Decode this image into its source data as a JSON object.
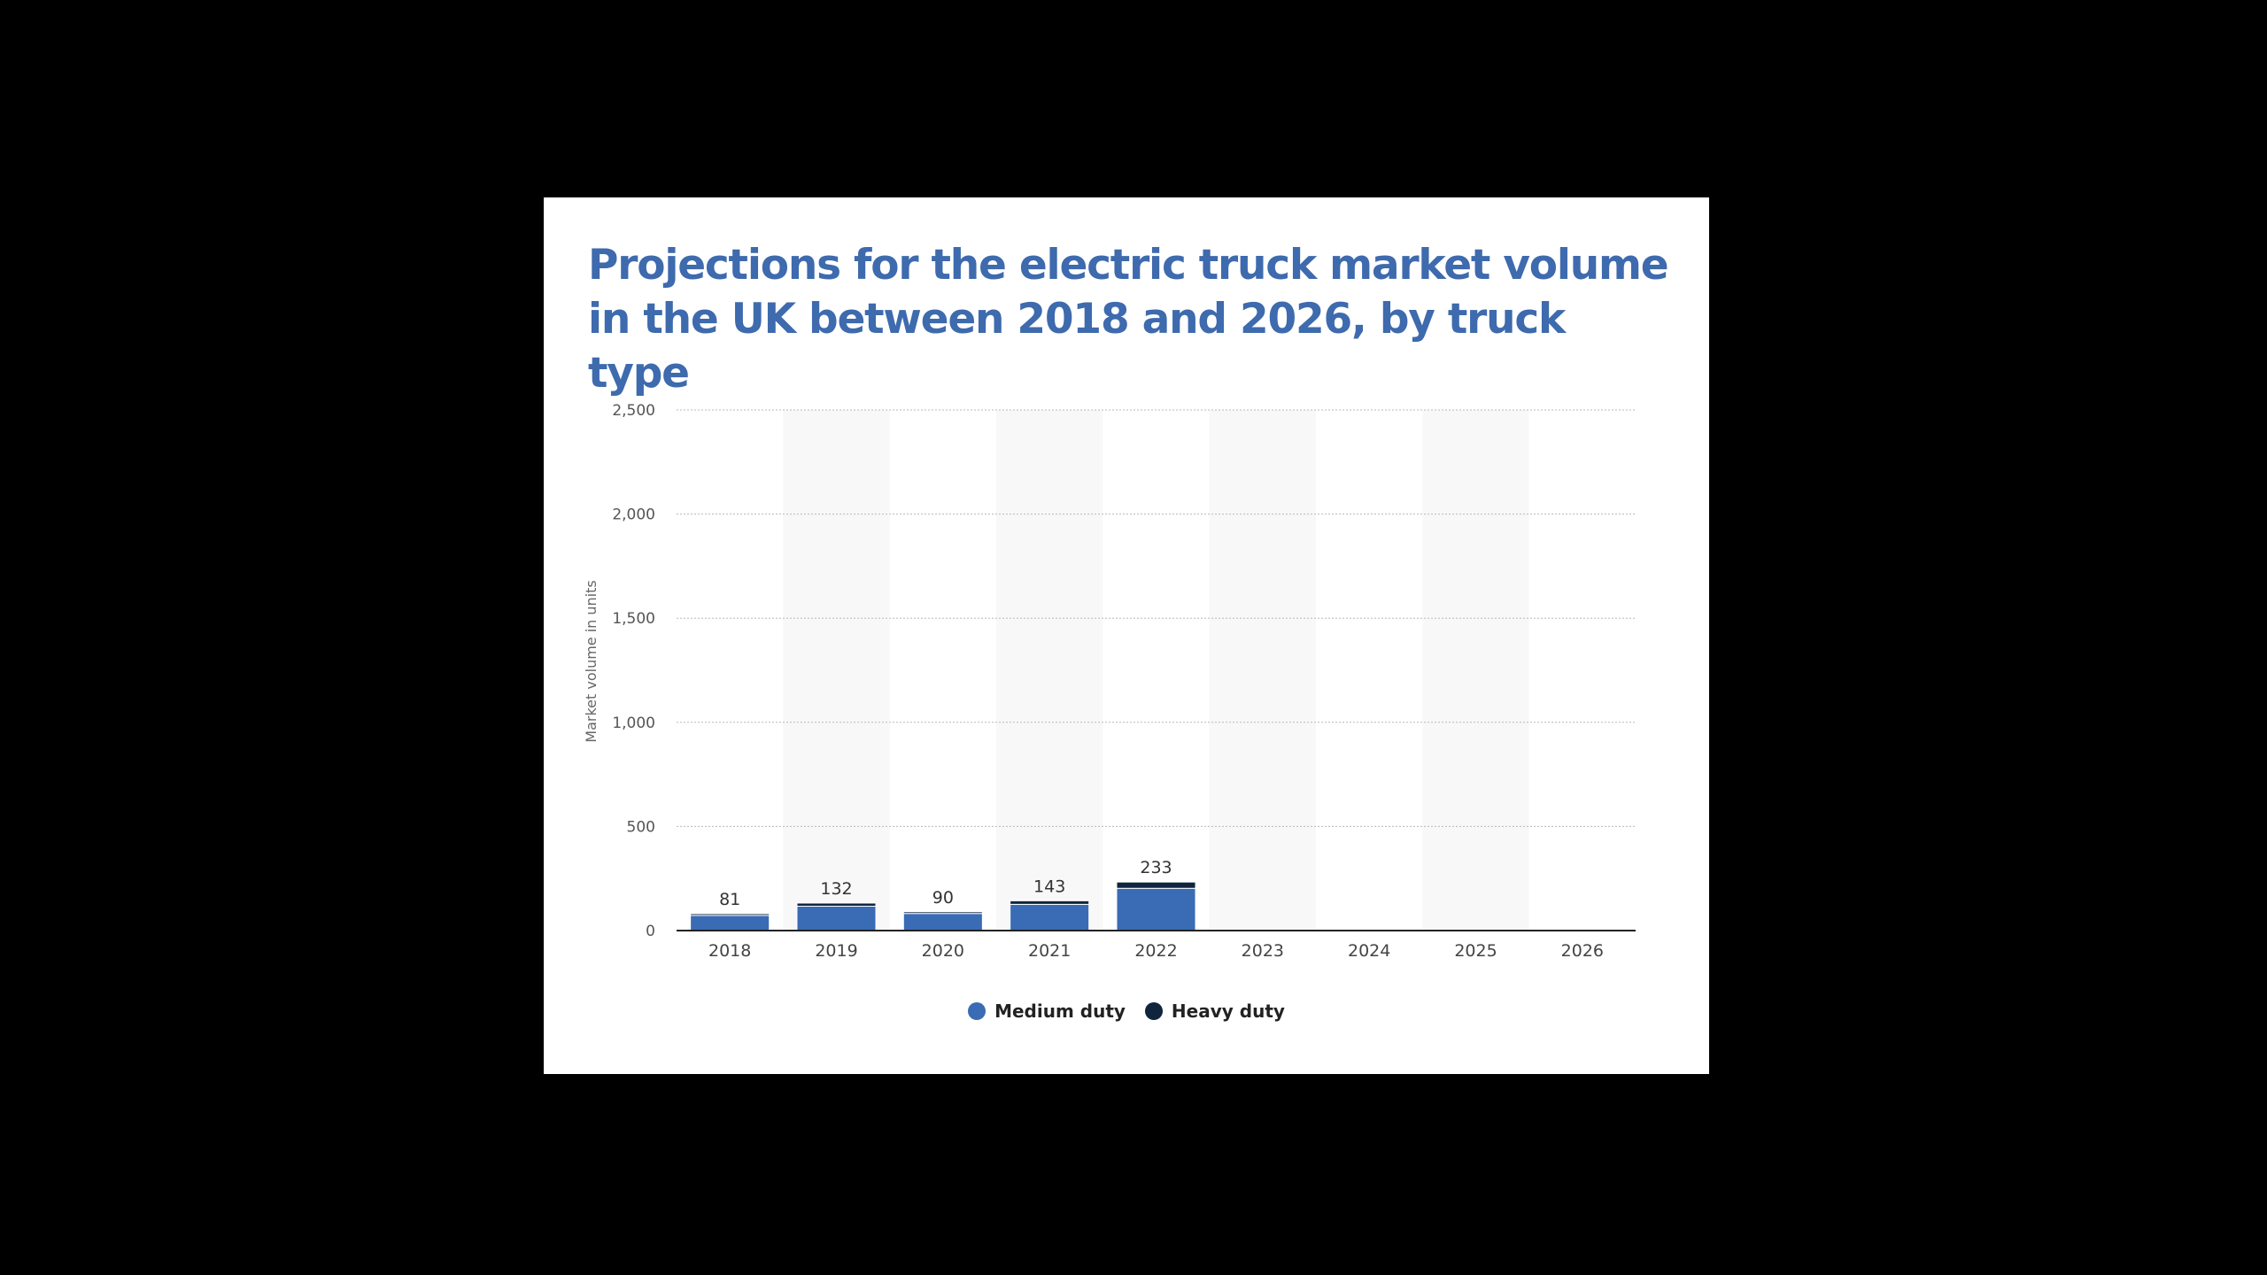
{
  "colors": {
    "title": "#3E6AAE",
    "medium": "#3A6BB5",
    "heavy": "#10243E",
    "band": "#F8F8F8",
    "grid": "#B8B8B8",
    "axis": "#222222"
  },
  "chart_data": {
    "type": "bar",
    "stacked": true,
    "title": "Projections for the electric truck market volume in the UK between 2018 and 2026, by truck type",
    "xlabel": "",
    "ylabel": "Market volume in units",
    "ylim": [
      0,
      2500
    ],
    "yticks": [
      0,
      500,
      1000,
      1500,
      2000,
      2500
    ],
    "ytick_labels": [
      "0",
      "500",
      "1,000",
      "1,500",
      "2,000",
      "2,500"
    ],
    "grid": true,
    "legend_position": "bottom-center",
    "categories": [
      "2018",
      "2019",
      "2020",
      "2021",
      "2022",
      "2023",
      "2024",
      "2025",
      "2026"
    ],
    "series": [
      {
        "name": "Medium duty",
        "values": [
          73,
          117,
          82,
          126,
          203,
          0,
          0,
          0,
          0
        ]
      },
      {
        "name": "Heavy duty",
        "values": [
          8,
          15,
          8,
          17,
          30,
          0,
          0,
          0,
          0
        ]
      }
    ],
    "totals": [
      81,
      132,
      90,
      143,
      233,
      null,
      null,
      null,
      null
    ],
    "total_labels": [
      "81",
      "132",
      "90",
      "143",
      "233",
      "",
      "",
      "",
      ""
    ]
  }
}
